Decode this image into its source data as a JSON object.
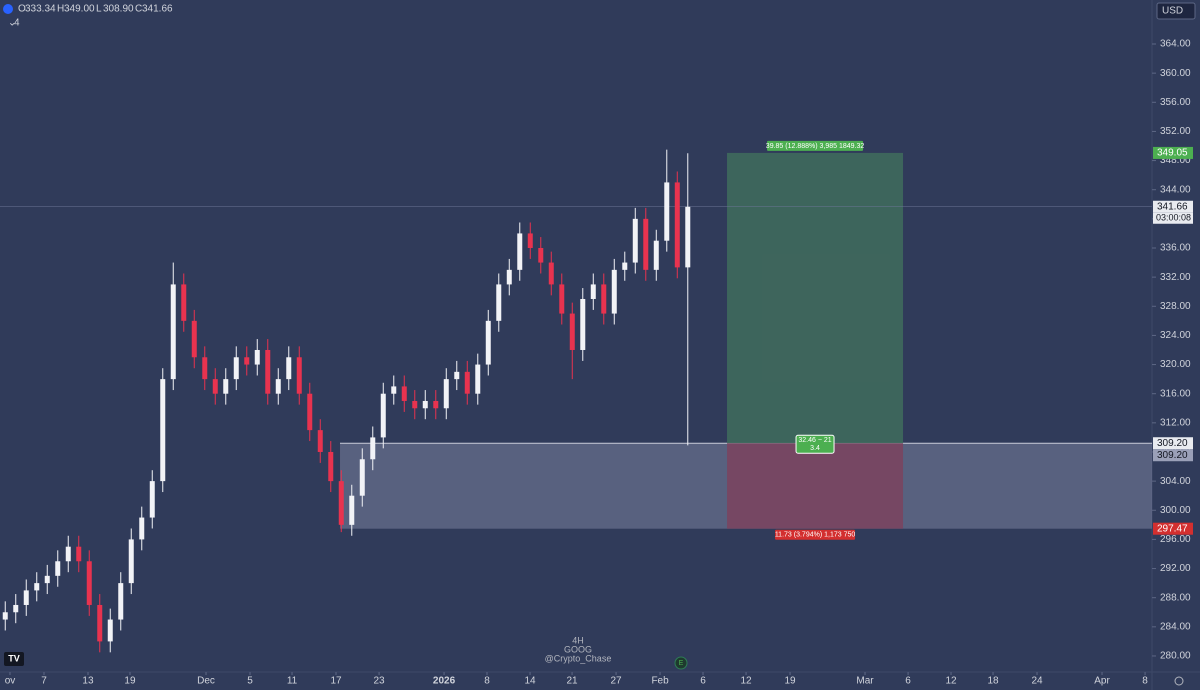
{
  "chart_data": {
    "type": "candlestick",
    "symbol": "GOOG",
    "interval": "4H",
    "author": "@Crypto_Chase",
    "interval_badge": "4",
    "currency": "USD",
    "ohlc_labels": [
      "O",
      "H",
      "L",
      "C"
    ],
    "ohlc": [
      333.34,
      349.0,
      308.9,
      341.66
    ],
    "ohlc_text": [
      "333.34",
      "349.00",
      "308.90",
      "341.66"
    ],
    "up_color": "#f2f3f7",
    "down_color": "#e8334f",
    "open": [
      285,
      286,
      287,
      289,
      290,
      291,
      293,
      295,
      293,
      287,
      282,
      285,
      290,
      296,
      299,
      304,
      318,
      331,
      326,
      321,
      318,
      316,
      318,
      321,
      320,
      322,
      316,
      318,
      321,
      316,
      311,
      308,
      304,
      298,
      302,
      307,
      310,
      316,
      317,
      315,
      314,
      315,
      314,
      318,
      319,
      316,
      320,
      326,
      331,
      333,
      338,
      336,
      334,
      331,
      327,
      322,
      329,
      331,
      327,
      333,
      334,
      340,
      333,
      337,
      345,
      333.34
    ],
    "high": [
      287.5,
      288.5,
      290.5,
      291.5,
      292.5,
      294.5,
      296.5,
      296.5,
      294.5,
      288.5,
      286.5,
      291.5,
      297.5,
      300.5,
      305.5,
      319.5,
      334,
      332.5,
      327.5,
      322.5,
      319.5,
      319.5,
      322.5,
      322.5,
      323.5,
      323.5,
      319.5,
      322.5,
      322.5,
      317.5,
      312.5,
      309.5,
      305.5,
      303.5,
      308.5,
      311.5,
      317.5,
      318.5,
      318.5,
      316.5,
      316.5,
      316.5,
      319.5,
      320.5,
      320.5,
      321.5,
      327.5,
      332.5,
      334.5,
      339.5,
      339.5,
      337.5,
      335.5,
      332.5,
      328.5,
      330.5,
      332.5,
      332.5,
      334.5,
      335.5,
      341.5,
      341.5,
      338.5,
      349.5,
      346.5,
      349
    ],
    "low": [
      283.5,
      284.5,
      285.5,
      287.5,
      288.5,
      289.5,
      291.5,
      291.5,
      285.5,
      280.5,
      280.5,
      283.5,
      288.5,
      294.5,
      297.5,
      302.5,
      316.5,
      324.5,
      319.5,
      316.5,
      314.5,
      314.5,
      316.5,
      318.5,
      318.5,
      314.5,
      314.5,
      316.5,
      314.5,
      309.5,
      306.5,
      302.5,
      297,
      296.5,
      300.5,
      305.5,
      308.5,
      314.5,
      313.5,
      312.5,
      312.5,
      312.5,
      312.5,
      316.5,
      314.5,
      314.5,
      318.5,
      324.5,
      329.5,
      331.5,
      334.5,
      332.5,
      329.5,
      325.5,
      318,
      320.5,
      327.5,
      325.5,
      325.5,
      331.5,
      332.5,
      331.5,
      331.5,
      335.5,
      331.84,
      308.9
    ],
    "close": [
      286,
      287,
      289,
      290,
      291,
      293,
      295,
      293,
      287,
      282,
      285,
      290,
      296,
      299,
      304,
      318,
      331,
      326,
      321,
      318,
      316,
      318,
      321,
      320,
      322,
      316,
      318,
      321,
      316,
      311,
      308,
      304,
      298,
      302,
      307,
      310,
      316,
      317,
      315,
      314,
      315,
      314,
      318,
      319,
      316,
      320,
      326,
      331,
      333,
      338,
      336,
      334,
      331,
      327,
      322,
      329,
      331,
      327,
      333,
      334,
      340,
      333,
      337,
      345,
      333.34,
      341.66
    ],
    "xlim": [
      0,
      109.71
    ],
    "ylim": [
      277.8,
      370.04
    ],
    "yticks": [
      {
        "value": 280,
        "label": "280.00"
      },
      {
        "value": 284,
        "label": "284.00"
      },
      {
        "value": 288,
        "label": "288.00"
      },
      {
        "value": 292,
        "label": "292.00"
      },
      {
        "value": 296,
        "label": "296.00"
      },
      {
        "value": 300,
        "label": "300.00"
      },
      {
        "value": 304,
        "label": "304.00"
      },
      {
        "value": 308,
        "label": "308.00"
      },
      {
        "value": 312,
        "label": "312.00"
      },
      {
        "value": 316,
        "label": "316.00"
      },
      {
        "value": 320,
        "label": "320.00"
      },
      {
        "value": 324,
        "label": "324.00"
      },
      {
        "value": 328,
        "label": "328.00"
      },
      {
        "value": 332,
        "label": "332.00"
      },
      {
        "value": 336,
        "label": "336.00"
      },
      {
        "value": 340,
        "label": "340.00"
      },
      {
        "value": 344,
        "label": "344.00"
      },
      {
        "value": 348,
        "label": "348.00"
      },
      {
        "value": 352,
        "label": "352.00"
      },
      {
        "value": 356,
        "label": "356.00"
      },
      {
        "value": 360,
        "label": "360.00"
      },
      {
        "value": 364,
        "label": "364.00"
      }
    ],
    "xticks": [
      {
        "value": 0.95,
        "label": "ov"
      },
      {
        "value": 4.19,
        "label": "7"
      },
      {
        "value": 8.38,
        "label": "13"
      },
      {
        "value": 12.38,
        "label": "19"
      },
      {
        "value": 19.62,
        "label": "Dec"
      },
      {
        "value": 23.81,
        "label": "5"
      },
      {
        "value": 27.81,
        "label": "11"
      },
      {
        "value": 32,
        "label": "17"
      },
      {
        "value": 36.1,
        "label": "23"
      },
      {
        "value": 42.29,
        "label": "2026"
      },
      {
        "value": 46.38,
        "label": "8"
      },
      {
        "value": 50.48,
        "label": "14"
      },
      {
        "value": 54.48,
        "label": "21"
      },
      {
        "value": 58.67,
        "label": "27"
      },
      {
        "value": 62.86,
        "label": "Feb"
      },
      {
        "value": 66.95,
        "label": "6"
      },
      {
        "value": 71.05,
        "label": "12"
      },
      {
        "value": 75.24,
        "label": "19"
      },
      {
        "value": 82.38,
        "label": "Mar"
      },
      {
        "value": 86.48,
        "label": "6"
      },
      {
        "value": 90.57,
        "label": "12"
      },
      {
        "value": 94.57,
        "label": "18"
      },
      {
        "value": 98.76,
        "label": "24"
      },
      {
        "value": 104.95,
        "label": "Apr"
      },
      {
        "value": 109.05,
        "label": "8"
      }
    ],
    "last_price": {
      "value": 341.66,
      "countdown": "03:00:08"
    },
    "zone": {
      "top": {
        "value": 309.2,
        "label": "309.20"
      },
      "bottom": 297.47,
      "x_start": 32.38
    },
    "position": {
      "x_start": 69.24,
      "x_end": 86.0,
      "target": 349.05,
      "entry": {
        "value": 309.2,
        "label": "309.20"
      },
      "stop": 297.47,
      "target_text": "39.85 (12.888%) 3,985 1849.32",
      "center_text": [
        "32.46 − 21",
        "3.4"
      ],
      "stop_text": "11.73 (3.794%) 1,173 750"
    }
  }
}
